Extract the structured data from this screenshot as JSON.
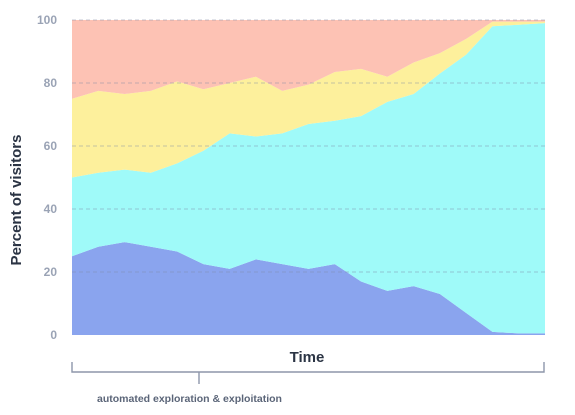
{
  "chart_data": {
    "type": "area",
    "stacked": true,
    "xlabel": "Time",
    "ylabel": "Percent of visitors",
    "ylim": [
      0,
      100
    ],
    "yticks": [
      0,
      20,
      40,
      60,
      80,
      100
    ],
    "grid": "horizontal dashed",
    "x": [
      0,
      1,
      2,
      3,
      4,
      5,
      6,
      7,
      8,
      9,
      10,
      11,
      12,
      13,
      14,
      15,
      16,
      17,
      18
    ],
    "series": [
      {
        "color": "#8aa4ee",
        "values": [
          25,
          28,
          29.5,
          28,
          26.5,
          22.5,
          21,
          24,
          22.5,
          21,
          22.5,
          17,
          14,
          15.5,
          13,
          7,
          1,
          0.5,
          0.5
        ]
      },
      {
        "color": "#9ffaf9",
        "values": [
          25,
          23.5,
          23,
          23.5,
          28,
          36,
          43,
          39,
          41.5,
          46,
          45.5,
          52.5,
          60,
          61,
          70,
          82,
          97,
          98,
          98.5
        ]
      },
      {
        "color": "#fdf09c",
        "values": [
          25,
          26,
          24,
          26,
          26,
          19.5,
          16,
          19,
          13.5,
          12.5,
          15.5,
          15,
          8,
          10,
          6.5,
          5,
          1.5,
          1,
          0.5
        ]
      },
      {
        "color": "#fdc2b4",
        "values": [
          25,
          22.5,
          23.5,
          22.5,
          19.5,
          22,
          20,
          18,
          22.5,
          20.5,
          16.5,
          15.5,
          18,
          13.5,
          10.5,
          6,
          0.5,
          0.5,
          0.5
        ]
      }
    ],
    "bracket_label": "automated exploration & exploitation"
  }
}
